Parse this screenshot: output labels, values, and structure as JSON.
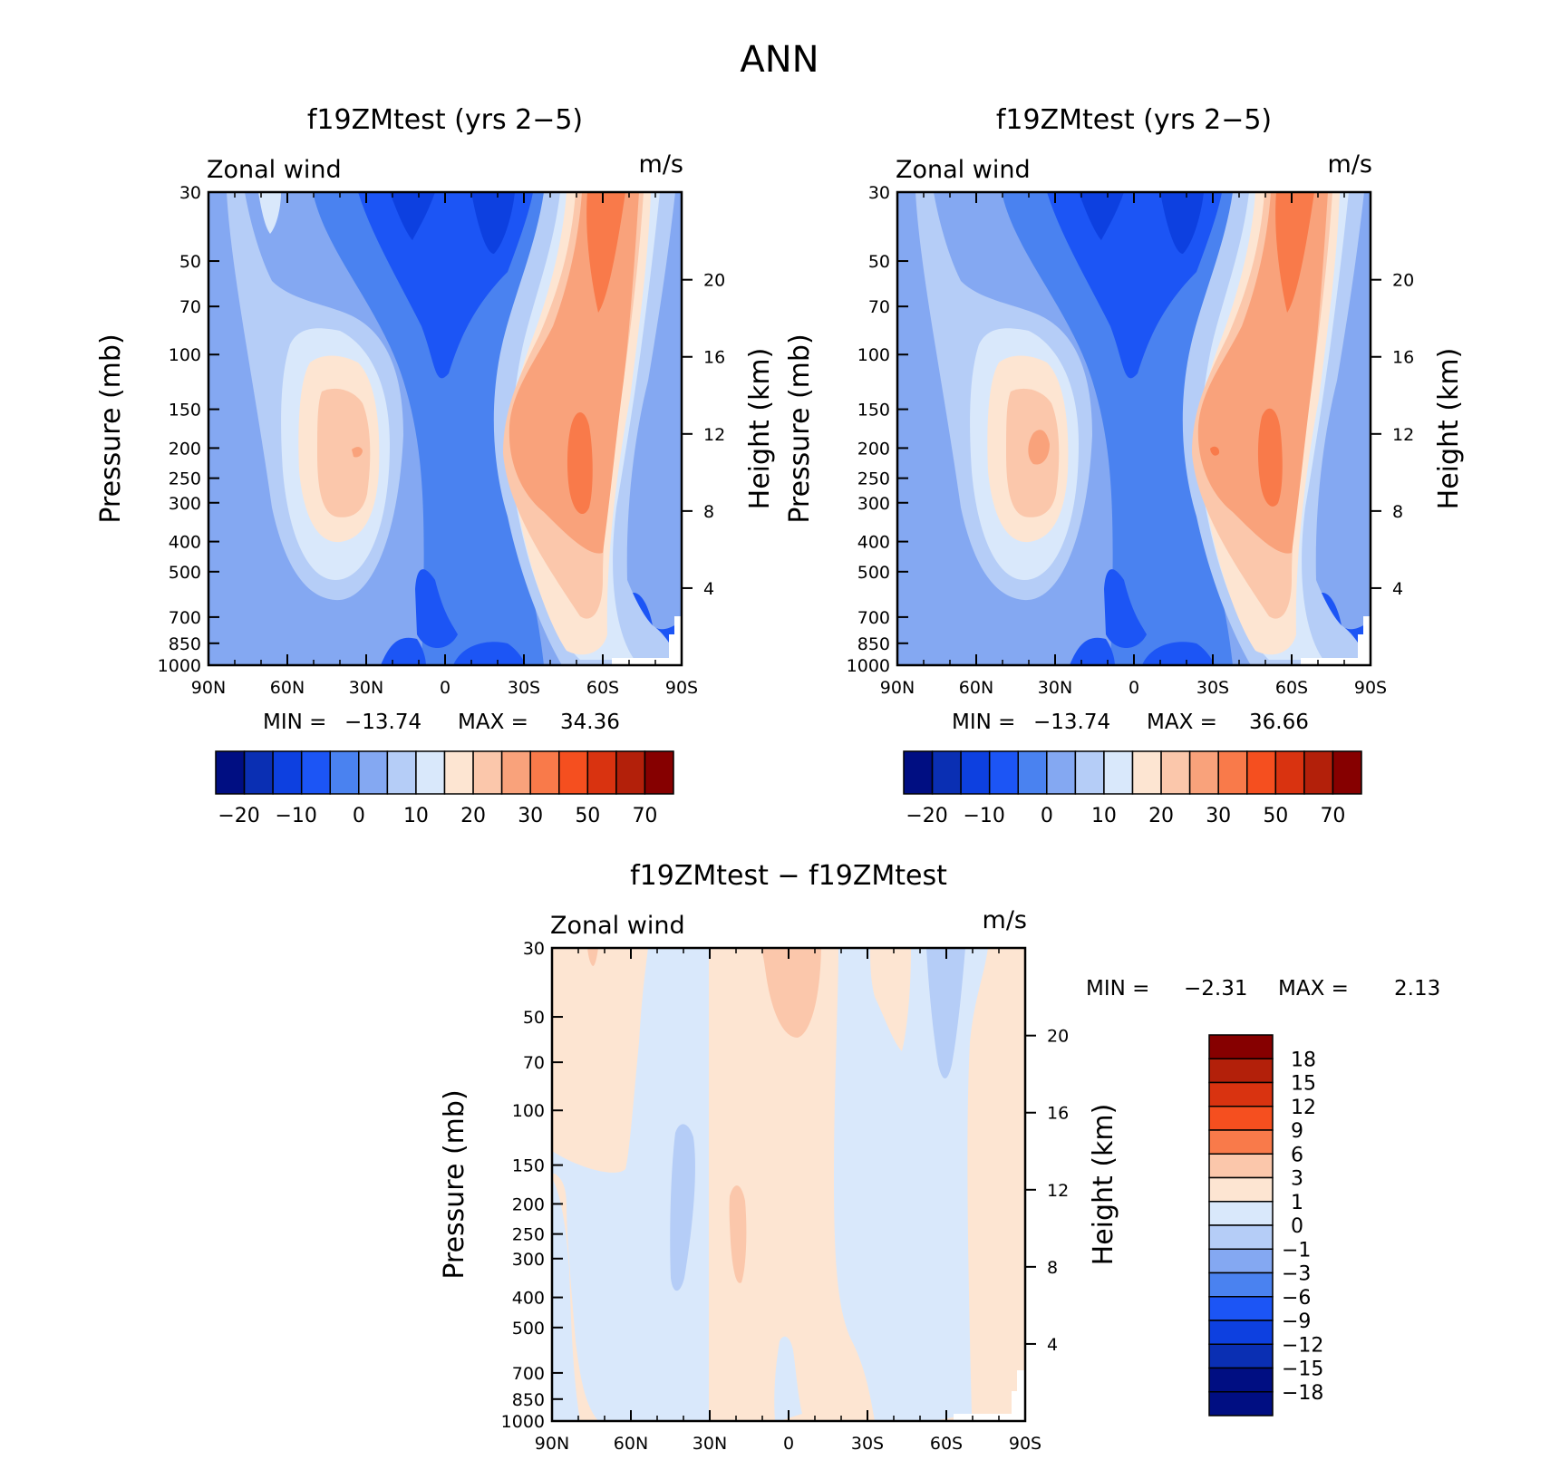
{
  "figure_title": "ANN",
  "chart_data": [
    {
      "type": "contour",
      "title": "f19ZMtest (yrs 2−5)",
      "left_label": "Zonal wind",
      "right_label": "m/s",
      "ylabel": "Pressure (mb)",
      "ylabel_right": "Height (km)",
      "stats": {
        "min_label": "MIN =",
        "min": "−13.74",
        "max_label": "MAX =",
        "max": "34.36"
      },
      "x_ticks": [
        "90N",
        "60N",
        "30N",
        "0",
        "30S",
        "60S",
        "90S"
      ],
      "y_ticks": [
        "30",
        "50",
        "70",
        "100",
        "150",
        "200",
        "250",
        "300",
        "400",
        "500",
        "700",
        "850",
        "1000"
      ],
      "height_ticks": [
        "20",
        "16",
        "12",
        "8",
        "4"
      ],
      "colorbar_labels": [
        "−20",
        "−10",
        "0",
        "10",
        "20",
        "30",
        "50",
        "70"
      ]
    },
    {
      "type": "contour",
      "title": "f19ZMtest (yrs 2−5)",
      "left_label": "Zonal wind",
      "right_label": "m/s",
      "ylabel": "Pressure (mb)",
      "ylabel_right": "Height (km)",
      "stats": {
        "min_label": "MIN =",
        "min": "−13.74",
        "max_label": "MAX =",
        "max": "36.66"
      },
      "x_ticks": [
        "90N",
        "60N",
        "30N",
        "0",
        "30S",
        "60S",
        "90S"
      ],
      "y_ticks": [
        "30",
        "50",
        "70",
        "100",
        "150",
        "200",
        "250",
        "300",
        "400",
        "500",
        "700",
        "850",
        "1000"
      ],
      "height_ticks": [
        "20",
        "16",
        "12",
        "8",
        "4"
      ],
      "colorbar_labels": [
        "−20",
        "−10",
        "0",
        "10",
        "20",
        "30",
        "50",
        "70"
      ]
    },
    {
      "type": "contour",
      "title": "f19ZMtest − f19ZMtest",
      "left_label": "Zonal wind",
      "right_label": "m/s",
      "ylabel": "Pressure (mb)",
      "ylabel_right": "Height (km)",
      "stats": {
        "min_label": "MIN =",
        "min": "−2.31",
        "max_label": "MAX =",
        "max": "2.13"
      },
      "x_ticks": [
        "90N",
        "60N",
        "30N",
        "0",
        "30S",
        "60S",
        "90S"
      ],
      "y_ticks": [
        "30",
        "50",
        "70",
        "100",
        "150",
        "200",
        "250",
        "300",
        "400",
        "500",
        "700",
        "850",
        "1000"
      ],
      "height_ticks": [
        "20",
        "16",
        "12",
        "8",
        "4"
      ],
      "colorbar_labels": [
        "18",
        "15",
        "12",
        "9",
        "6",
        "3",
        "1",
        "0",
        "−1",
        "−3",
        "−6",
        "−9",
        "−12",
        "−15",
        "−18"
      ]
    }
  ],
  "colors": {
    "abs_colorbar": [
      "#000e82",
      "#0a2fb3",
      "#0d40e0",
      "#1c55f5",
      "#4a82f0",
      "#84a8f2",
      "#b5cdf7",
      "#d9e8fb",
      "#fde5d2",
      "#fbc7ab",
      "#f9a27b",
      "#f97a4a",
      "#f54f1f",
      "#d93310",
      "#b3200a",
      "#860000"
    ],
    "diff_colorbar": [
      "#860000",
      "#b3200a",
      "#d93310",
      "#f54f1f",
      "#f97a4a",
      "#fbc7ab",
      "#fde5d2",
      "#d9e8fb",
      "#b5cdf7",
      "#84a8f2",
      "#4a82f0",
      "#1c55f5",
      "#0d40e0",
      "#0a2fb3",
      "#000e82"
    ]
  }
}
